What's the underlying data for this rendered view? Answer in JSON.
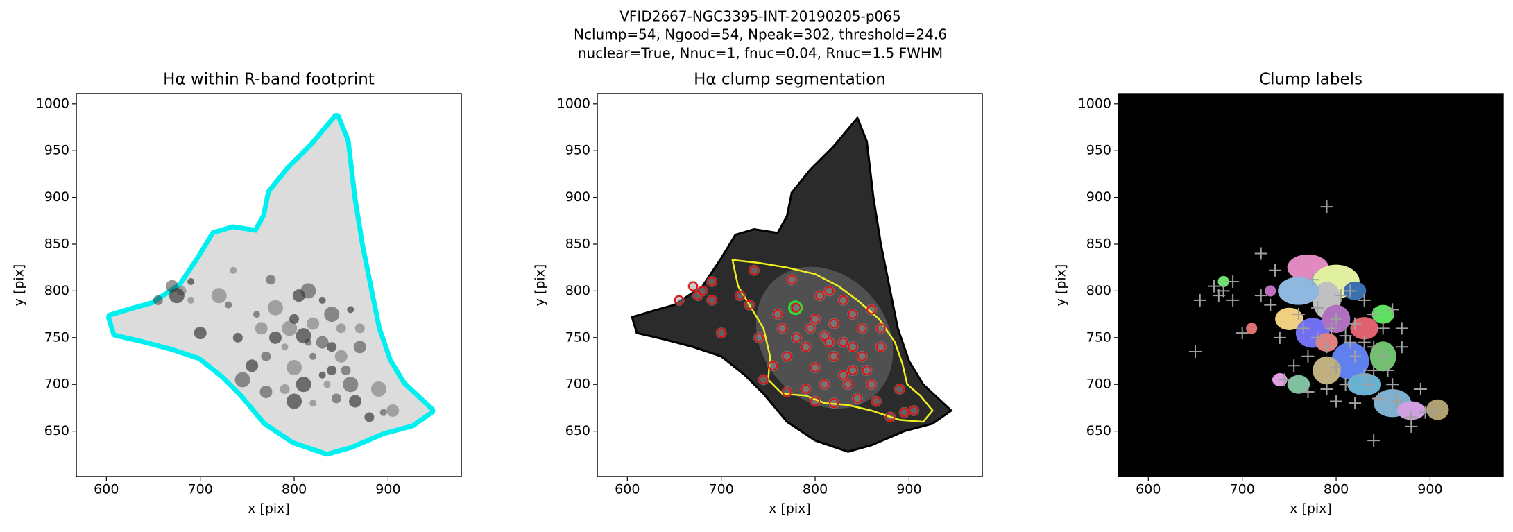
{
  "title_lines": [
    "VFID2667-NGC3395-INT-20190205-p065",
    "Nclump=54, Ngood=54, Npeak=302, threshold=24.6",
    "nuclear=True, Nnuc=1, fnuc=0.04, Rnuc=1.5 FWHM"
  ],
  "chart_data": [
    {
      "type": "image",
      "title": "Hα within R-band footprint",
      "xlabel": "x [pix]",
      "ylabel": "y [pix]",
      "xlim": [
        568,
        978
      ],
      "ylim": [
        601.5,
        1011
      ],
      "xticks": [
        600,
        700,
        800,
        900
      ],
      "yticks": [
        650,
        700,
        750,
        800,
        850,
        900,
        950,
        1000
      ]
    },
    {
      "type": "image",
      "title": "Hα clump segmentation",
      "xlabel": "x [pix]",
      "ylabel": "y [pix]",
      "xlim": [
        568,
        978
      ],
      "ylim": [
        601.5,
        1011
      ],
      "xticks": [
        600,
        700,
        800,
        900
      ],
      "yticks": [
        650,
        700,
        750,
        800,
        850,
        900,
        950,
        1000
      ]
    },
    {
      "type": "image",
      "title": "Clump labels",
      "xlabel": "x [pix]",
      "ylabel": "y [pix]",
      "xlim": [
        568,
        978
      ],
      "ylim": [
        601.5,
        1011
      ],
      "xticks": [
        600,
        700,
        800,
        900
      ],
      "yticks": [
        650,
        700,
        750,
        800,
        850,
        900,
        950,
        1000
      ]
    }
  ]
}
